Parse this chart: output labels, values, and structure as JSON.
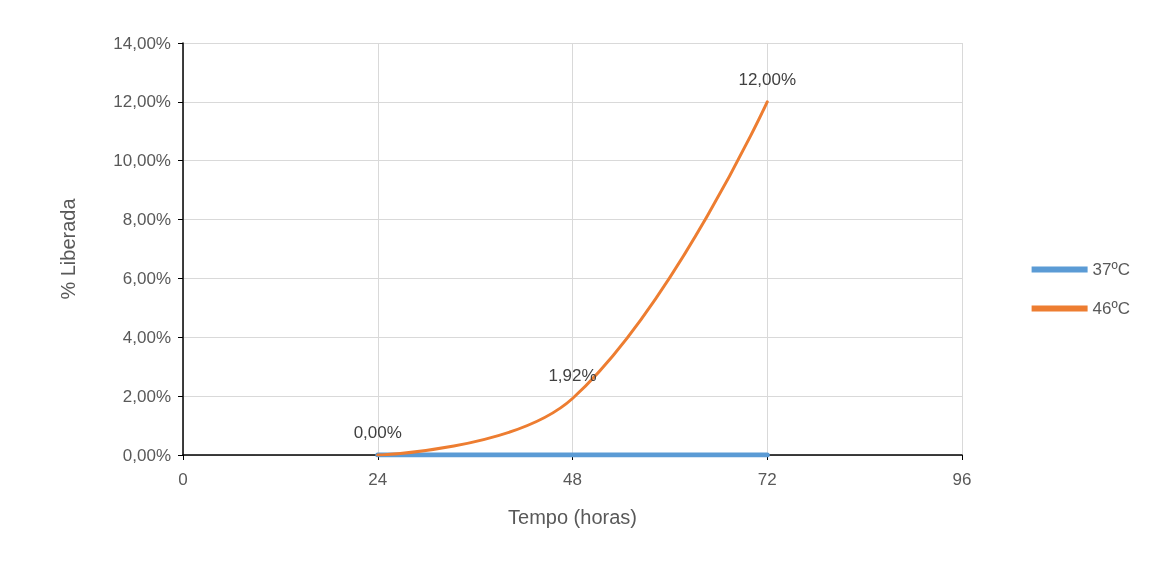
{
  "chart_data": {
    "type": "line",
    "xlabel": "Tempo (horas)",
    "ylabel": "% Liberada",
    "xlim": [
      0,
      96
    ],
    "xticks": [
      0,
      24,
      48,
      72,
      96
    ],
    "ylim": [
      0,
      14
    ],
    "yticks": [
      {
        "value": 0,
        "label": "0,00%"
      },
      {
        "value": 2,
        "label": "2,00%"
      },
      {
        "value": 4,
        "label": "4,00%"
      },
      {
        "value": 6,
        "label": "6,00%"
      },
      {
        "value": 8,
        "label": "8,00%"
      },
      {
        "value": 10,
        "label": "10,00%"
      },
      {
        "value": 12,
        "label": "12,00%"
      },
      {
        "value": 14,
        "label": "14,00%"
      }
    ],
    "grid": true,
    "legend": "right",
    "marker": "none",
    "series": [
      {
        "name": "37ºC",
        "color": "#5b9bd5",
        "x": [
          24,
          48,
          72
        ],
        "values": [
          0,
          0,
          0
        ]
      },
      {
        "name": "46ºC",
        "color": "#ed7d31",
        "x": [
          24,
          48,
          72
        ],
        "values": [
          0,
          1.92,
          12
        ],
        "value_labels": [
          "0,00%",
          "1,92%",
          "12,00%"
        ]
      }
    ]
  }
}
